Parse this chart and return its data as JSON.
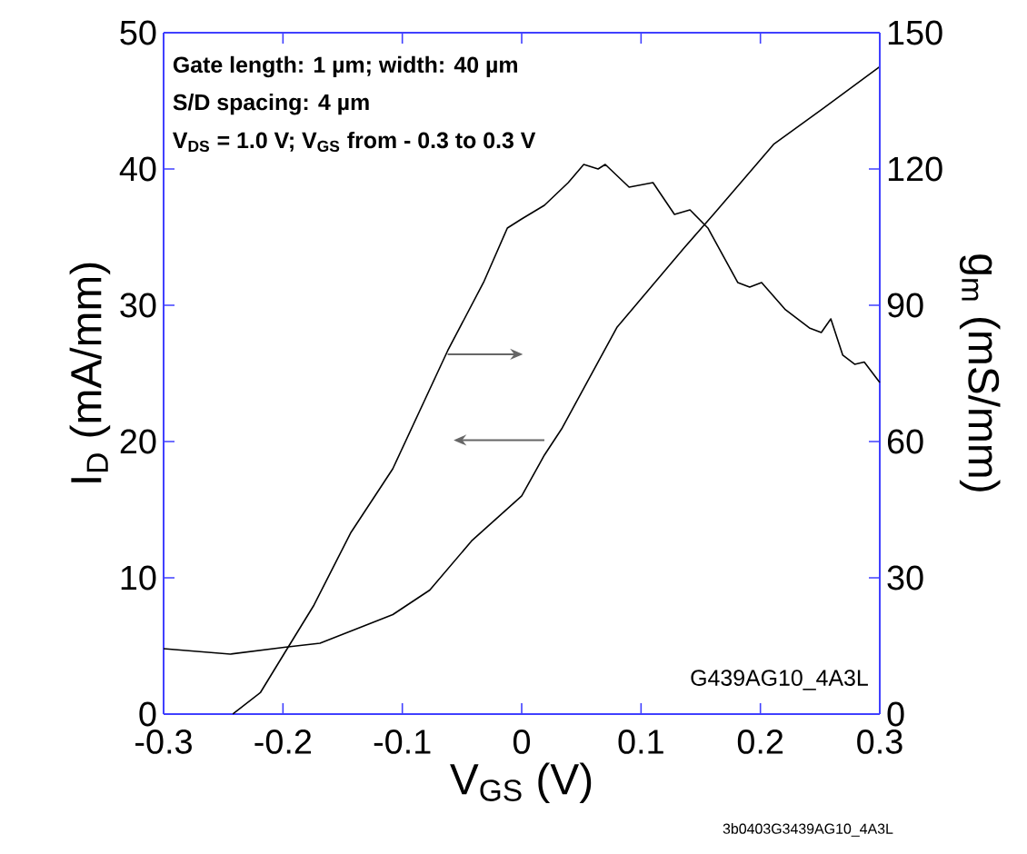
{
  "chart_data": {
    "type": "line",
    "xlabel": "V$_{GS}$ (V)",
    "ylabel": "I$_{D}$ (mA/mm)",
    "y2label": "g$_{m}$ (mS/mm)",
    "xlim": [
      -0.3,
      0.3
    ],
    "xticks": [
      -0.3,
      -0.2,
      -0.1,
      0,
      0.1,
      0.2,
      0.3
    ],
    "ylim": [
      0,
      50
    ],
    "yticks": [
      0,
      10,
      20,
      30,
      40,
      50
    ],
    "y2lim": [
      0,
      150
    ],
    "y2ticks": [
      0,
      30,
      60,
      90,
      120,
      150
    ],
    "marker": "none",
    "line_style": "solid",
    "series": [
      {
        "color": "#000000",
        "x": [
          -0.3,
          -0.244,
          -0.199,
          -0.169,
          -0.108,
          -0.077,
          -0.042,
          0,
          0.019,
          0.034,
          0.08,
          0.136,
          0.161,
          0.211,
          0.252,
          0.3
        ],
        "values": [
          4.8,
          4.4,
          4.9,
          5.2,
          7.3,
          9.1,
          12.7,
          16,
          19,
          21,
          28.4,
          34.2,
          36.7,
          41.8,
          44.4,
          47.5
        ]
      },
      {
        "color": "#000000",
        "axis": "y2",
        "x": [
          -0.242,
          -0.219,
          -0.199,
          -0.174,
          -0.143,
          -0.108,
          -0.062,
          -0.032,
          -0.012,
          0,
          0.019,
          0.039,
          0.052,
          0.064,
          0.07,
          0.09,
          0.11,
          0.128,
          0.141,
          0.156,
          0.181,
          0.191,
          0.201,
          0.221,
          0.241,
          0.251,
          0.259,
          0.269,
          0.279,
          0.287,
          0.3
        ],
        "values": [
          0,
          4.7,
          13.3,
          24,
          40,
          54,
          80,
          95,
          107,
          109,
          112,
          117,
          121,
          120,
          121,
          116,
          117,
          110,
          111,
          107,
          95,
          94,
          95,
          89,
          85,
          84,
          87,
          79,
          77,
          77.5,
          73
        ]
      }
    ],
    "annotations": [
      "Gate length: 1 µm; width: 40 µm",
      "S/D spacing: 4 µm",
      "V$_{DS}$ = 1.0 V; V$_{GS}$ from - 0.3 to 0.3 V",
      "G439AG10_4A3L",
      "3b0403G3439AG10_4A3L"
    ]
  }
}
